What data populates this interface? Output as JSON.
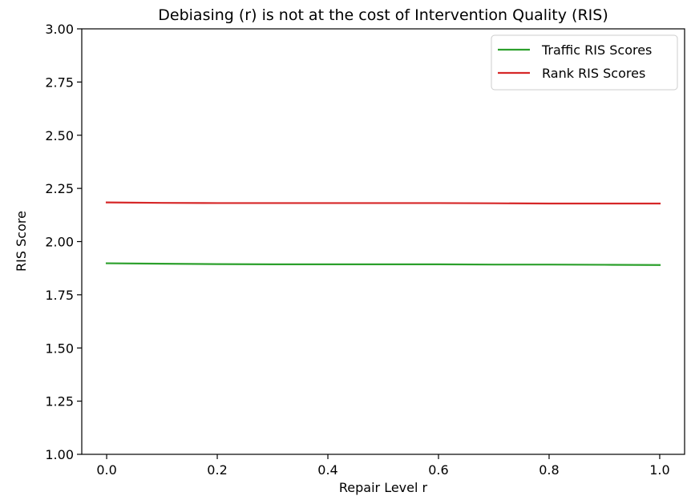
{
  "chart_data": {
    "type": "line",
    "title": "Debiasing (r) is not at the cost of Intervention Quality (RIS)",
    "xlabel": "Repair Level r",
    "ylabel": "RIS Score",
    "xlim": [
      -0.045,
      1.045
    ],
    "ylim": [
      1.0,
      3.0
    ],
    "xticks": [
      0.0,
      0.2,
      0.4,
      0.6,
      0.8,
      1.0
    ],
    "xtick_labels": [
      "0.0",
      "0.2",
      "0.4",
      "0.6",
      "0.8",
      "1.0"
    ],
    "yticks": [
      1.0,
      1.25,
      1.5,
      1.75,
      2.0,
      2.25,
      2.5,
      2.75,
      3.0
    ],
    "ytick_labels": [
      "1.00",
      "1.25",
      "1.50",
      "1.75",
      "2.00",
      "2.25",
      "2.50",
      "2.75",
      "3.00"
    ],
    "grid": false,
    "legend_position": "top-right",
    "series": [
      {
        "name": "Traffic RIS Scores",
        "color": "#2ca02c",
        "x": [
          0.0,
          0.1,
          0.2,
          0.3,
          0.4,
          0.5,
          0.6,
          0.7,
          0.8,
          0.9,
          1.0
        ],
        "y": [
          1.898,
          1.896,
          1.894,
          1.893,
          1.893,
          1.893,
          1.893,
          1.892,
          1.892,
          1.891,
          1.89
        ]
      },
      {
        "name": "Rank RIS Scores",
        "color": "#d62728",
        "x": [
          0.0,
          0.1,
          0.2,
          0.3,
          0.4,
          0.5,
          0.6,
          0.7,
          0.8,
          0.9,
          1.0
        ],
        "y": [
          2.184,
          2.182,
          2.181,
          2.181,
          2.181,
          2.181,
          2.181,
          2.18,
          2.179,
          2.179,
          2.179
        ]
      }
    ]
  }
}
